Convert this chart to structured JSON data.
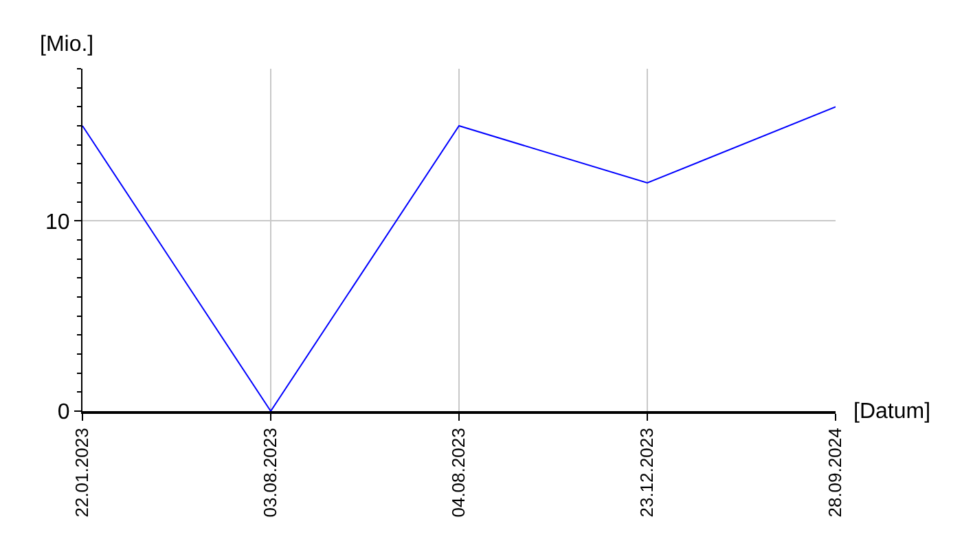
{
  "chart_data": {
    "type": "line",
    "xlabel": "[Datum]",
    "ylabel": "[Mio.]",
    "categories": [
      "22.01.2023",
      "03.08.2023",
      "04.08.2023",
      "23.12.2023",
      "28.09.2024"
    ],
    "series": [
      {
        "color": "#0000ff",
        "values": [
          15,
          0,
          15,
          12,
          16
        ]
      }
    ],
    "ylim": [
      0,
      18
    ],
    "yticks": [
      0,
      10
    ],
    "grid": true,
    "marker": "none",
    "line_style": "solid"
  }
}
